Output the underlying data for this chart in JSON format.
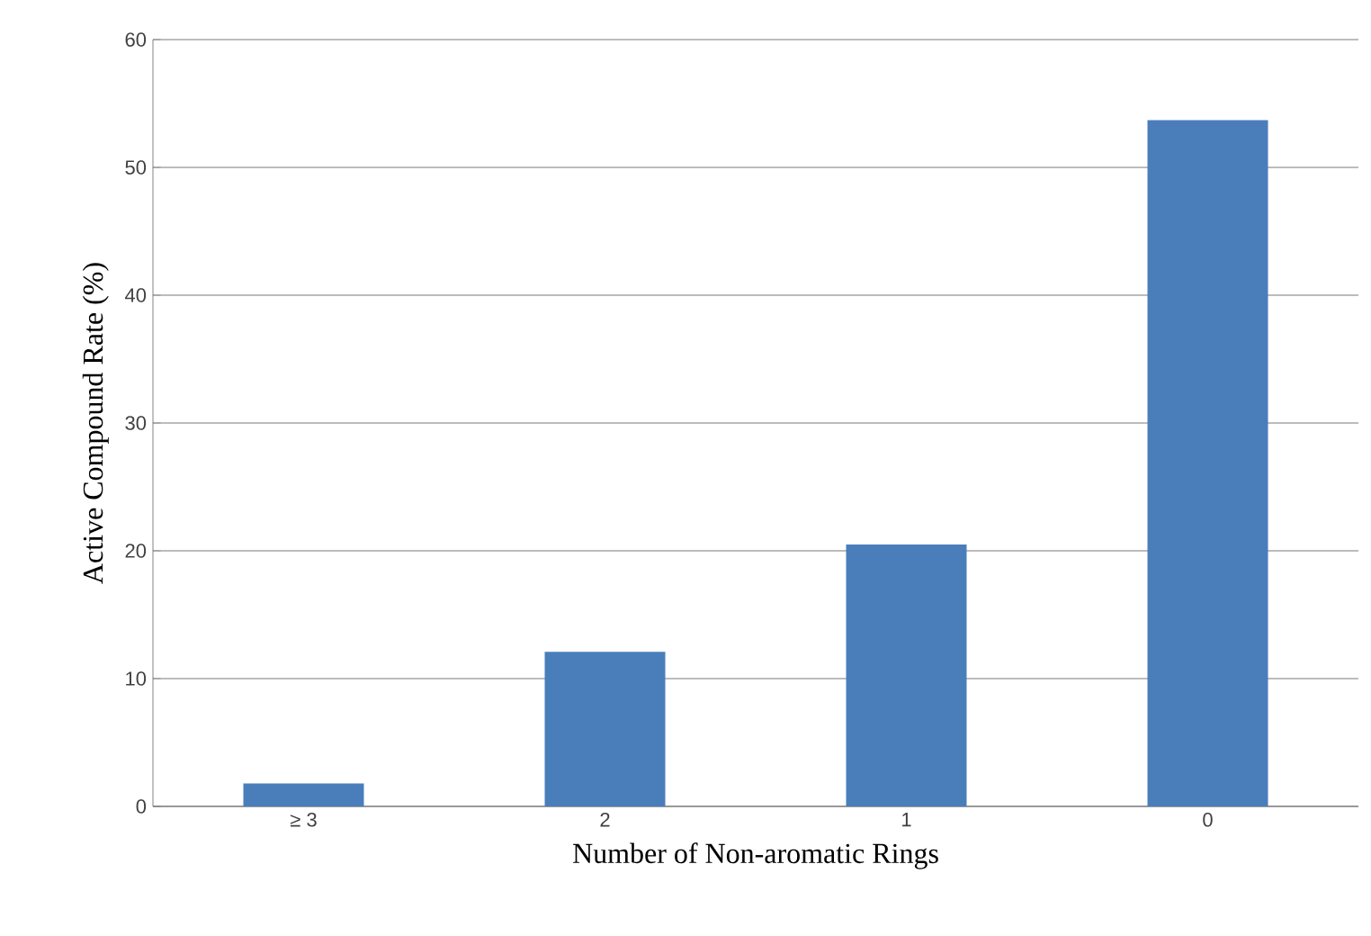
{
  "chart_data": {
    "type": "bar",
    "xlabel": "Number of Non-aromatic Rings",
    "ylabel": "Active Compound Rate (%)",
    "categories": [
      "≥ 3",
      "2",
      "1",
      "0"
    ],
    "values": [
      1.8,
      12.1,
      20.5,
      53.7
    ],
    "color": "#4a7ebb",
    "ylim": [
      0,
      60
    ],
    "yticks": [
      0,
      10,
      20,
      30,
      40,
      50,
      60
    ],
    "grid": "y"
  }
}
